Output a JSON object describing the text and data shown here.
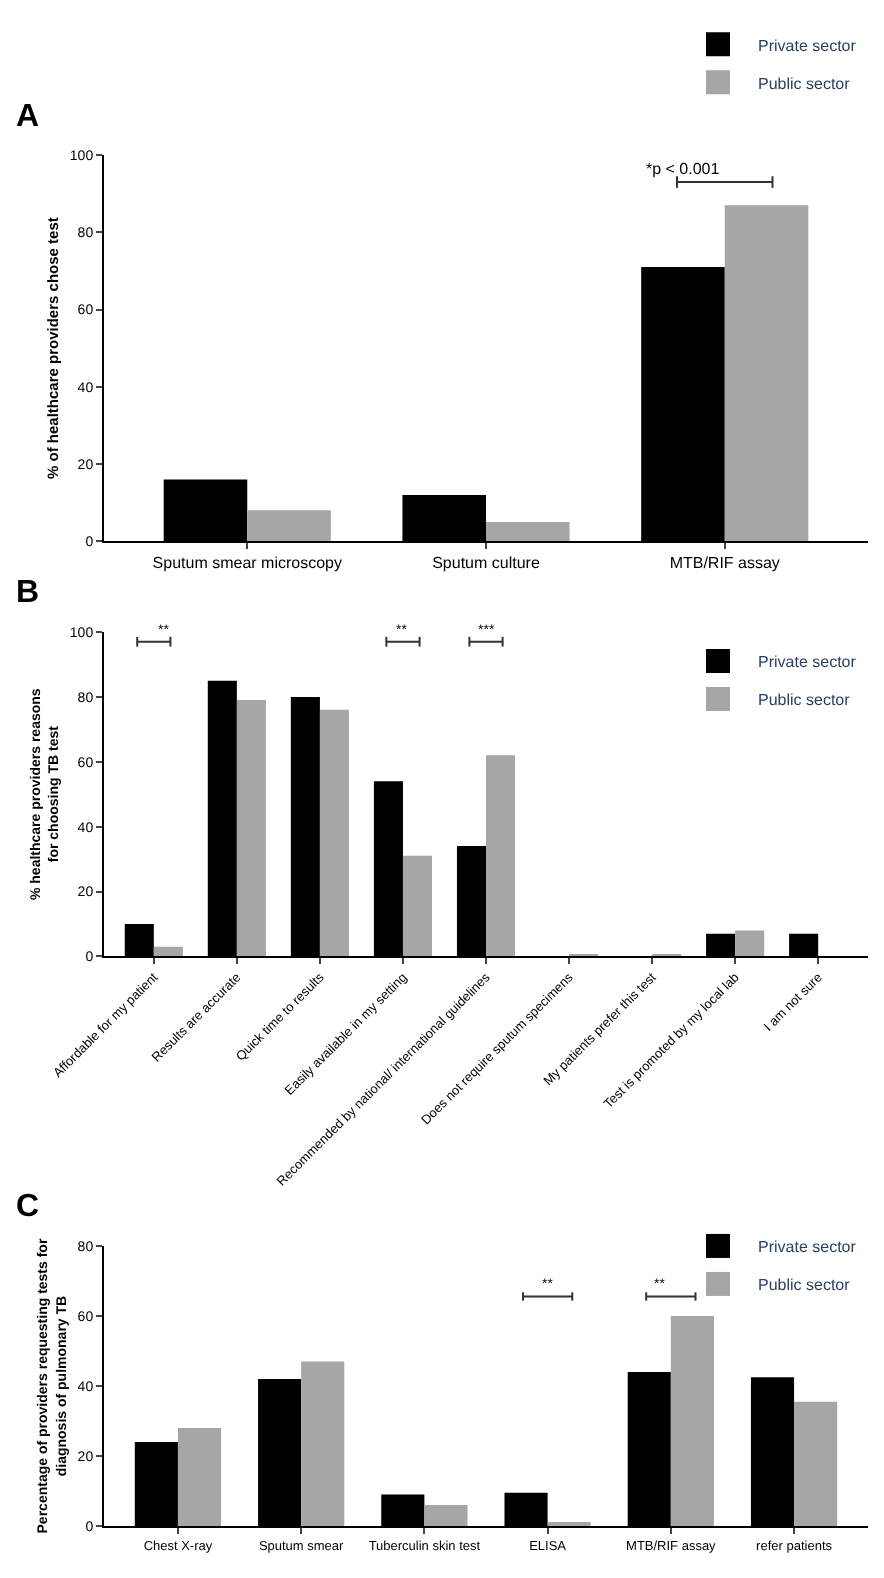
{
  "chart_data": [
    {
      "type": "bar",
      "title": "A",
      "ylabel": "% of healthcare providers chose test",
      "categories": [
        "Sputum smear microscopy",
        "Sputum culture",
        "MTB/RIF assay"
      ],
      "series": [
        {
          "name": "Private sector",
          "color": "#000000",
          "values": [
            16,
            12,
            71
          ]
        },
        {
          "name": "Public sector",
          "color": "#a6a6a6",
          "values": [
            8,
            5,
            87
          ]
        }
      ],
      "ylim": [
        0,
        100
      ],
      "yticks": [
        0,
        20,
        40,
        60,
        80,
        100
      ],
      "legend": "top right",
      "annotations": [
        "*p < 0.001"
      ]
    },
    {
      "type": "bar",
      "title": "B",
      "ylabel": "% healthcare providers reasons for choosing TB test",
      "categories": [
        "Affordable for my patient",
        "Results are accurate",
        "Quick time to results",
        "Easily available in my setting",
        "Recommended by national/ international guidelines",
        "Does not require sputum specimens",
        "My patients prefer this test",
        "Test is promoted by my local lab",
        "I am not sure"
      ],
      "series": [
        {
          "name": "Private sector",
          "color": "#000000",
          "values": [
            10,
            85,
            80,
            54,
            34,
            0,
            0,
            7,
            7
          ]
        },
        {
          "name": "Public sector",
          "color": "#a6a6a6",
          "values": [
            3,
            79,
            76,
            31,
            62,
            0.5,
            0.5,
            8,
            0
          ]
        }
      ],
      "ylim": [
        0,
        100
      ],
      "yticks": [
        0,
        20,
        40,
        60,
        80,
        100
      ],
      "legend": "top right",
      "annotations": [
        "**",
        "**",
        "***"
      ]
    },
    {
      "type": "bar",
      "title": "C",
      "ylabel": "Percentage of providers requesting tests for diagnosis of pulmonary TB",
      "categories": [
        "Chest X-ray",
        "Sputum smear",
        "Tuberculin skin test",
        "ELISA",
        "MTB/RIF assay",
        "refer patients"
      ],
      "series": [
        {
          "name": "Private sector",
          "color": "#000000",
          "values": [
            24,
            42,
            9,
            9.5,
            44,
            42.5
          ]
        },
        {
          "name": "Public sector",
          "color": "#a6a6a6",
          "values": [
            28,
            47,
            6,
            1,
            60,
            35.5
          ]
        }
      ],
      "ylim": [
        0,
        80
      ],
      "yticks": [
        0,
        20,
        40,
        60,
        80
      ],
      "legend": "top right",
      "annotations": [
        "**",
        "**"
      ]
    }
  ]
}
